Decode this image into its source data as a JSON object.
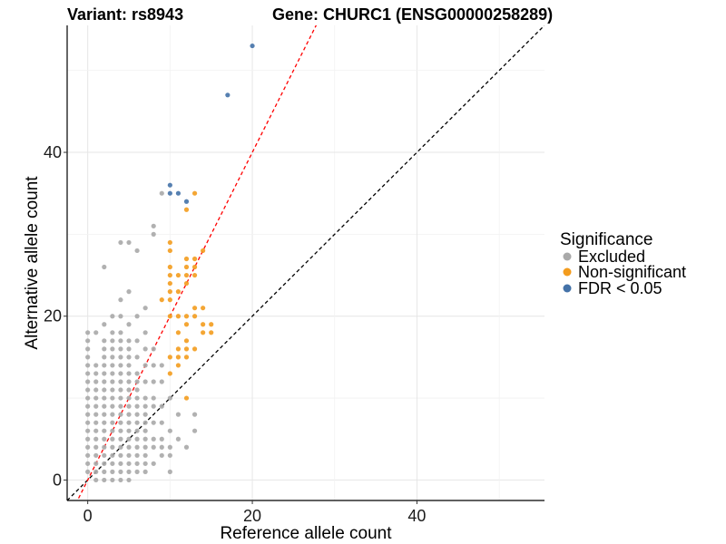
{
  "chart_data": {
    "type": "scatter",
    "title_left": "Variant: rs8943",
    "title_right": "Gene: CHURC1 (ENSG00000258289)",
    "xlabel": "Reference allele count",
    "ylabel": "Alternative allele count",
    "xlim": [
      -2.5,
      55.5
    ],
    "ylim": [
      -2.5,
      55.5
    ],
    "xticks": [
      0,
      20,
      40
    ],
    "yticks": [
      0,
      20,
      40
    ],
    "grid": true,
    "reference_lines": [
      {
        "name": "identity",
        "slope": 1,
        "intercept": 0,
        "color": "#000000",
        "dash": "dashed"
      },
      {
        "name": "fit",
        "slope": 2,
        "intercept": 0,
        "color": "#ff0000",
        "dash": "dashed"
      }
    ],
    "legend": {
      "title": "Significance",
      "position": "right",
      "entries": [
        {
          "label": "Excluded",
          "color": "#a9a9a9"
        },
        {
          "label": "Non-significant",
          "color": "#f39c1e"
        },
        {
          "label": "FDR < 0.05",
          "color": "#4472a8"
        }
      ]
    },
    "series": [
      {
        "name": "Excluded",
        "color": "#a9a9a9",
        "x": [
          0,
          0,
          0,
          0,
          0,
          0,
          0,
          0,
          0,
          0,
          0,
          0,
          0,
          0,
          0,
          0,
          0,
          0,
          1,
          1,
          1,
          1,
          1,
          1,
          1,
          1,
          1,
          1,
          1,
          1,
          1,
          1,
          1,
          1,
          2,
          2,
          2,
          2,
          2,
          2,
          2,
          2,
          2,
          2,
          2,
          2,
          2,
          2,
          2,
          2,
          2,
          2,
          2,
          2,
          3,
          3,
          3,
          3,
          3,
          3,
          3,
          3,
          3,
          3,
          3,
          3,
          3,
          3,
          3,
          3,
          3,
          3,
          3,
          3,
          4,
          4,
          4,
          4,
          4,
          4,
          4,
          4,
          4,
          4,
          4,
          4,
          4,
          4,
          4,
          4,
          4,
          4,
          4,
          4,
          4,
          4,
          5,
          5,
          5,
          5,
          5,
          5,
          5,
          5,
          5,
          5,
          5,
          5,
          5,
          5,
          5,
          5,
          5,
          5,
          5,
          5,
          5,
          6,
          6,
          6,
          6,
          6,
          6,
          6,
          6,
          6,
          6,
          6,
          6,
          6,
          6,
          6,
          6,
          6,
          7,
          7,
          7,
          7,
          7,
          7,
          7,
          7,
          7,
          7,
          7,
          7,
          7,
          7,
          7,
          8,
          8,
          8,
          8,
          8,
          8,
          8,
          8,
          8,
          8,
          8,
          9,
          9,
          9,
          9,
          9,
          9,
          9,
          9,
          10,
          10,
          10,
          10,
          10,
          11,
          11,
          12,
          13,
          13
        ],
        "y": [
          1,
          2,
          3,
          4,
          5,
          6,
          7,
          8,
          9,
          10,
          11,
          12,
          13,
          14,
          15,
          16,
          17,
          18,
          0,
          1,
          2,
          3,
          4,
          5,
          6,
          7,
          8,
          9,
          10,
          11,
          12,
          13,
          14,
          18,
          0,
          1,
          2,
          3,
          4,
          5,
          6,
          7,
          8,
          9,
          10,
          11,
          12,
          13,
          14,
          15,
          16,
          17,
          19,
          26,
          0,
          1,
          2,
          3,
          4,
          5,
          6,
          7,
          8,
          9,
          10,
          11,
          12,
          13,
          14,
          15,
          16,
          17,
          18,
          20,
          0,
          1,
          2,
          3,
          4,
          5,
          6,
          7,
          8,
          9,
          10,
          11,
          12,
          13,
          14,
          15,
          16,
          17,
          18,
          20,
          22,
          29,
          0,
          1,
          2,
          3,
          4,
          5,
          6,
          7,
          8,
          9,
          10,
          11,
          12,
          13,
          14,
          15,
          16,
          17,
          19,
          23,
          29,
          1,
          2,
          3,
          4,
          5,
          6,
          7,
          8,
          9,
          10,
          11,
          12,
          13,
          15,
          17,
          20,
          28,
          1,
          2,
          3,
          4,
          5,
          6,
          7,
          8,
          9,
          10,
          12,
          14,
          16,
          18,
          21,
          2,
          4,
          5,
          7,
          9,
          10,
          12,
          14,
          16,
          30,
          31,
          3,
          4,
          5,
          7,
          9,
          12,
          14,
          35,
          1,
          3,
          4,
          6,
          10,
          5,
          8,
          4,
          6,
          8
        ]
      },
      {
        "name": "Non-significant",
        "color": "#f39c1e",
        "x": [
          9,
          10,
          10,
          10,
          10,
          10,
          10,
          10,
          10,
          10,
          10,
          11,
          11,
          11,
          11,
          11,
          11,
          11,
          12,
          12,
          12,
          12,
          12,
          12,
          12,
          12,
          12,
          12,
          12,
          13,
          13,
          13,
          13,
          13,
          13,
          13,
          14,
          14,
          14,
          14,
          15,
          15
        ],
        "y": [
          22,
          29,
          28,
          26,
          25,
          24,
          23,
          22,
          20,
          15,
          13,
          25,
          23,
          20,
          18,
          16,
          15,
          14,
          33,
          27,
          26,
          25,
          24,
          20,
          19,
          17,
          16,
          15,
          10,
          35,
          27,
          26,
          25,
          21,
          20,
          16,
          28,
          21,
          19,
          18,
          19,
          18
        ]
      },
      {
        "name": "FDR < 0.05",
        "color": "#4472a8",
        "x": [
          10,
          10,
          11,
          12,
          17,
          20
        ],
        "y": [
          36,
          35,
          35,
          34,
          47,
          53
        ]
      }
    ]
  }
}
